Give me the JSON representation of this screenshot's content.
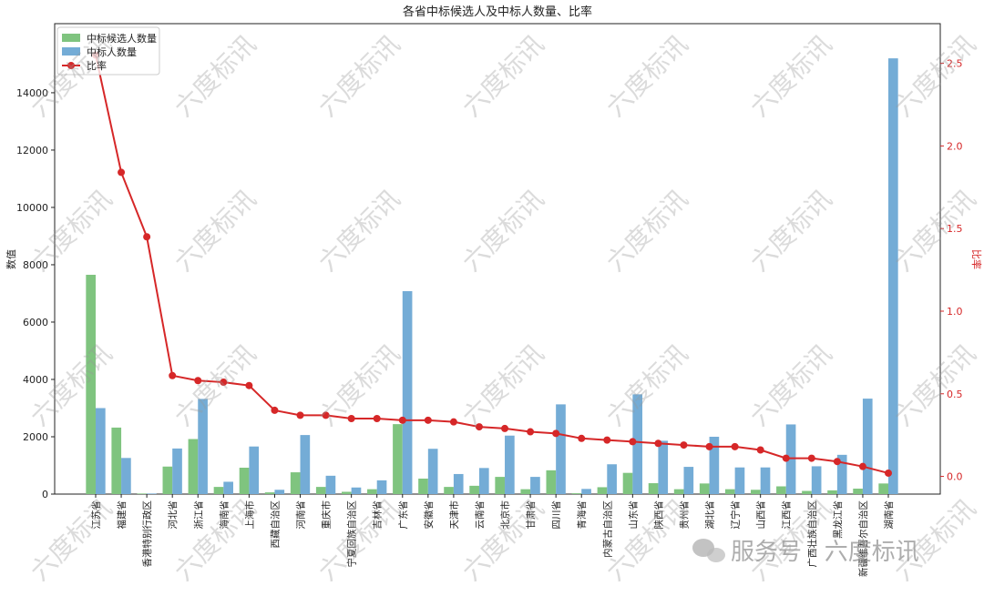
{
  "chart_data": {
    "type": "bar",
    "title": "各省中标候选人及中标人数量、比率",
    "y_label": "数值",
    "y2_label": "比率",
    "categories": [
      "江苏省",
      "福建省",
      "香港特别行政区",
      "河北省",
      "浙江省",
      "海南省",
      "上海市",
      "西藏自治区",
      "河南省",
      "重庆市",
      "宁夏回族自治区",
      "吉林省",
      "广东省",
      "安徽省",
      "天津市",
      "云南省",
      "北京市",
      "甘肃省",
      "四川省",
      "青海省",
      "内蒙古自治区",
      "山东省",
      "陕西省",
      "贵州省",
      "湖北省",
      "辽宁省",
      "山西省",
      "江西省",
      "广西壮族自治区",
      "黑龙江省",
      "新疆维吾尔自治区",
      "湖南省"
    ],
    "series": [
      {
        "name": "中标候选人数量",
        "type": "bar",
        "color": "#7fc47f",
        "values": [
          7650,
          2320,
          20,
          960,
          1920,
          250,
          920,
          60,
          760,
          250,
          80,
          170,
          2440,
          540,
          250,
          290,
          600,
          170,
          830,
          30,
          240,
          740,
          380,
          170,
          370,
          170,
          150,
          270,
          110,
          130,
          190,
          370
        ]
      },
      {
        "name": "中标人数量",
        "type": "bar",
        "color": "#74acd6",
        "values": [
          3000,
          1260,
          20,
          1590,
          3320,
          430,
          1660,
          150,
          2060,
          640,
          230,
          480,
          7080,
          1580,
          700,
          910,
          2040,
          600,
          3130,
          180,
          1040,
          3480,
          1860,
          950,
          2000,
          930,
          930,
          2430,
          970,
          1370,
          3330,
          15200
        ]
      },
      {
        "name": "比率",
        "type": "line",
        "axis": "y2",
        "color": "#d62728",
        "values": [
          2.55,
          1.84,
          1.45,
          0.61,
          0.58,
          0.57,
          0.55,
          0.4,
          0.37,
          0.37,
          0.35,
          0.35,
          0.34,
          0.34,
          0.33,
          0.3,
          0.29,
          0.27,
          0.26,
          0.23,
          0.22,
          0.21,
          0.2,
          0.19,
          0.18,
          0.18,
          0.16,
          0.11,
          0.11,
          0.09,
          0.06,
          0.02
        ]
      }
    ],
    "ylim": [
      0,
      16410
    ],
    "yticks": [
      0,
      2000,
      4000,
      6000,
      8000,
      10000,
      12000,
      14000
    ],
    "y2lim": [
      -0.107,
      2.74
    ],
    "y2ticks": [
      {
        "value": 0,
        "label": "0.0"
      },
      0.5,
      {
        "value": 1,
        "label": "1.0"
      },
      1.5,
      {
        "value": 2,
        "label": "2.0"
      },
      2.5
    ],
    "legend": "upper left",
    "watermark": "六度标讯",
    "footer": "服务号 · 六度标讯"
  }
}
